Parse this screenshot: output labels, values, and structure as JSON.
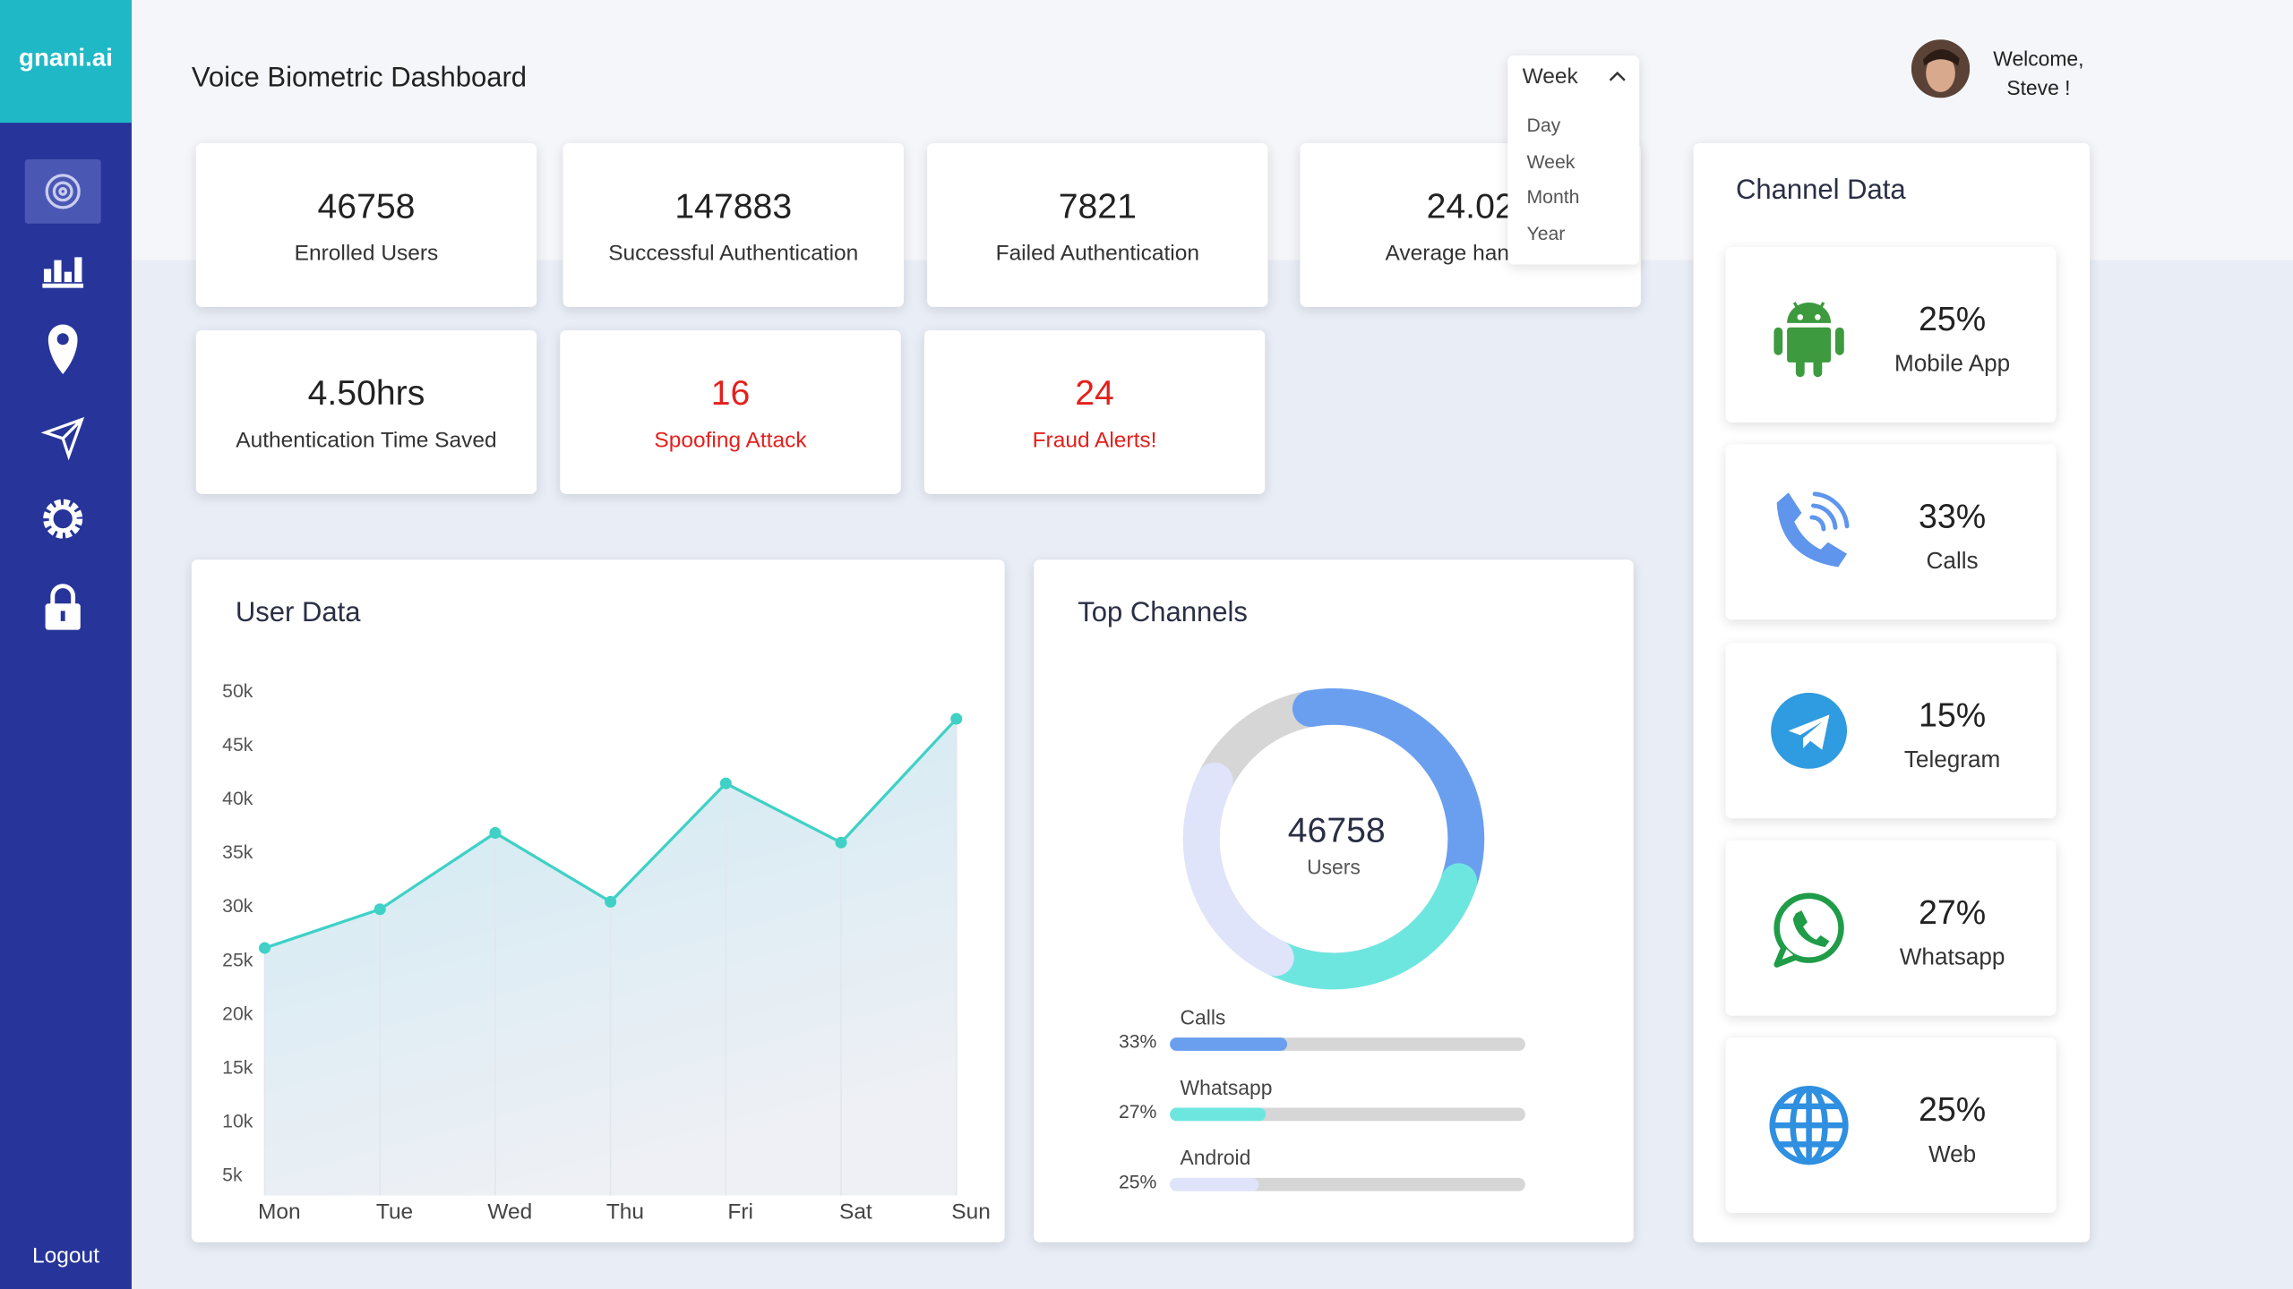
{
  "sidebar": {
    "logo": "gnani.ai",
    "logout": "Logout"
  },
  "header": {
    "title": "Voice Biometric Dashboard",
    "period_select": {
      "selected": "Week",
      "options": [
        "Day",
        "Week",
        "Month",
        "Year"
      ]
    },
    "greeting": "Welcome,",
    "user": "Steve !"
  },
  "stats": [
    {
      "value": "46758",
      "label": "Enrolled Users"
    },
    {
      "value": "147883",
      "label": "Successful Authentication"
    },
    {
      "value": "7821",
      "label": "Failed Authentication"
    },
    {
      "value": "24.02",
      "label": "Average handling"
    },
    {
      "value": "4.50hrs",
      "label": "Authentication Time Saved"
    },
    {
      "value": "16",
      "label": "Spoofing Attack",
      "color": "#e3201c"
    },
    {
      "value": "24",
      "label": "Fraud Alerts!",
      "color": "#e3201c"
    }
  ],
  "user_data": {
    "title": "User Data",
    "categories": [
      "Mon",
      "Tue",
      "Wed",
      "Thu",
      "Fri",
      "Sat",
      "Sun"
    ],
    "values": [
      26000,
      29600,
      36700,
      30300,
      41300,
      35800,
      47300
    ],
    "ylim": [
      3000,
      50000
    ],
    "yticks": [
      {
        "value": 5000,
        "label": "5k"
      },
      {
        "value": 10000,
        "label": "10k"
      },
      {
        "value": 15000,
        "label": "15k"
      },
      {
        "value": 20000,
        "label": "20k"
      },
      {
        "value": 25000,
        "label": "25k"
      },
      {
        "value": 30000,
        "label": "30k"
      },
      {
        "value": 35000,
        "label": "35k"
      },
      {
        "value": 40000,
        "label": "40k"
      },
      {
        "value": 45000,
        "label": "45k"
      },
      {
        "value": 50000,
        "label": "50k"
      }
    ],
    "color": "#3fd1c6"
  },
  "top_channels": {
    "title": "Top Channels",
    "total": "46758",
    "total_label": "Users",
    "channels": [
      {
        "name": "Calls",
        "value": 33,
        "value_label": "33%",
        "color": "#6a9ff0"
      },
      {
        "name": "Whatsapp",
        "value": 27,
        "value_label": "27%",
        "color": "#6ee6e0"
      },
      {
        "name": "Android",
        "value": 25,
        "value_label": "25%",
        "color": "#dfe4fb"
      }
    ]
  },
  "channel_data": {
    "title": "Channel Data",
    "channels": [
      {
        "percent": "25%",
        "name": "Mobile App"
      },
      {
        "percent": "33%",
        "name": "Calls"
      },
      {
        "percent": "15%",
        "name": "Telegram"
      },
      {
        "percent": "27%",
        "name": "Whatsapp"
      },
      {
        "percent": "25%",
        "name": "Web"
      }
    ]
  }
}
